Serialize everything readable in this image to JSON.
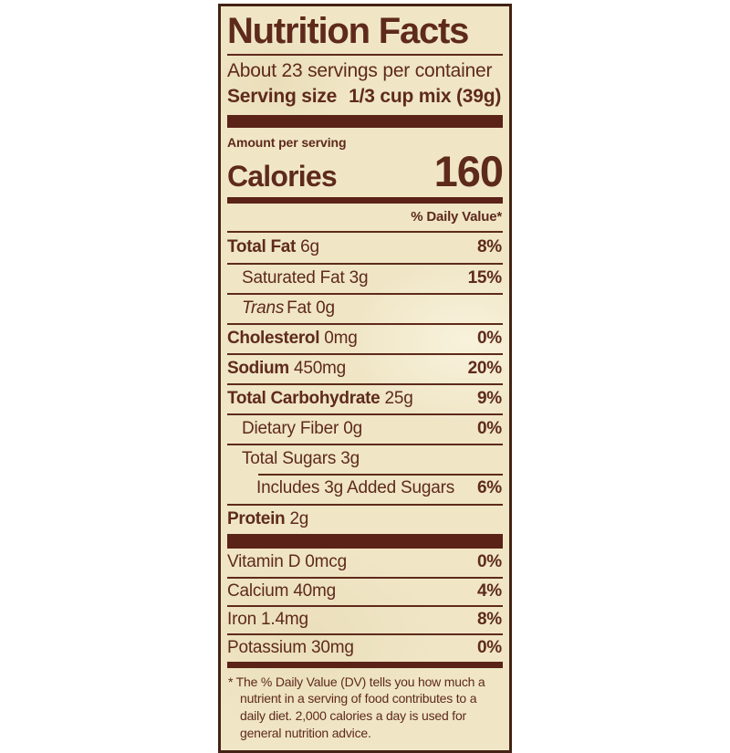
{
  "page": {
    "background": "#ffffff"
  },
  "colors": {
    "ink": "#5e2a1b",
    "bar": "#5b2217",
    "label_background": "#f0e6c6",
    "border": "#432315"
  },
  "label": {
    "title": "Nutrition Facts",
    "servings_per_container": "About 23 servings per container",
    "serving_size": {
      "label": "Serving size",
      "value": "1/3 cup mix (39g)"
    },
    "amount_per_serving": "Amount per serving",
    "calories": {
      "label": "Calories",
      "value": "160"
    },
    "daily_value_header": "% Daily Value*",
    "nutrients": [
      {
        "name": "Total Fat",
        "amount": "6g",
        "dv": "8%",
        "style": "bold",
        "indent": 0,
        "sep": "none"
      },
      {
        "name": "Saturated Fat",
        "amount": "3g",
        "dv": "15%",
        "indent": 1,
        "sep": "full"
      },
      {
        "italic": "Trans",
        "name": "Fat",
        "amount": "0g",
        "dv": "",
        "indent": 1,
        "sep": "full"
      },
      {
        "name": "Cholesterol",
        "amount": "0mg",
        "dv": "0%",
        "style": "bold",
        "indent": 0,
        "sep": "full"
      },
      {
        "name": "Sodium",
        "amount": "450mg",
        "dv": "20%",
        "style": "bold",
        "indent": 0,
        "sep": "full"
      },
      {
        "name": "Total Carbohydrate",
        "amount": "25g",
        "dv": "9%",
        "style": "bold",
        "indent": 0,
        "sep": "full"
      },
      {
        "name": "Dietary Fiber",
        "amount": "0g",
        "dv": "0%",
        "indent": 1,
        "sep": "full"
      },
      {
        "name": "Total Sugars",
        "amount": "3g",
        "dv": "",
        "indent": 1,
        "sep": "full"
      },
      {
        "name": "Includes 3g Added Sugars",
        "amount": "",
        "dv": "6%",
        "indent": 2,
        "sep": "indent"
      },
      {
        "name": "Protein",
        "amount": "2g",
        "dv": "",
        "style": "bold",
        "indent": 0,
        "sep": "full"
      }
    ],
    "vitamins": [
      {
        "name": "Vitamin D",
        "amount": "0mcg",
        "dv": "0%",
        "sep": "none"
      },
      {
        "name": "Calcium",
        "amount": "40mg",
        "dv": "4%",
        "sep": "full"
      },
      {
        "name": "Iron",
        "amount": "1.4mg",
        "dv": "8%",
        "sep": "full"
      },
      {
        "name": "Potassium",
        "amount": "30mg",
        "dv": "0%",
        "sep": "full"
      }
    ],
    "footnote": "* The % Daily Value (DV) tells you how much a nutrient in a serving of food contributes to a daily diet. 2,000 calories a day is used for general nutrition advice."
  }
}
